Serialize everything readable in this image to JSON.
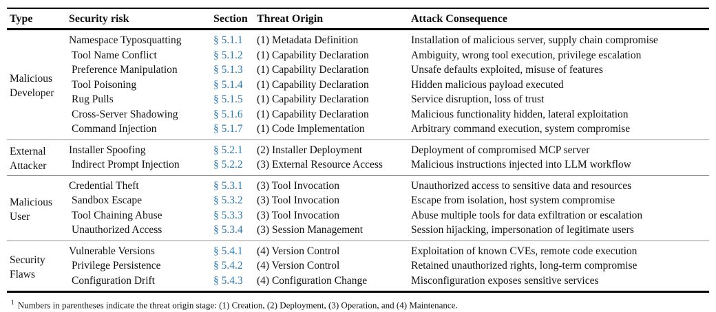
{
  "table": {
    "columns": [
      "Type",
      "Security risk",
      "Section",
      "Threat Origin",
      "Attack Consequence"
    ],
    "groups": [
      {
        "type": "Malicious Developer",
        "rows": [
          {
            "risk": "Namespace Typosquatting",
            "section": "§ 5.1.1",
            "origin": "(1) Metadata Definition",
            "consequence": "Installation of malicious server, supply chain compromise"
          },
          {
            "risk": "Tool Name Conflict",
            "section": "§ 5.1.2",
            "origin": "(1) Capability Declaration",
            "consequence": "Ambiguity, wrong tool execution, privilege escalation"
          },
          {
            "risk": "Preference Manipulation",
            "section": "§ 5.1.3",
            "origin": "(1) Capability Declaration",
            "consequence": "Unsafe defaults exploited, misuse of features"
          },
          {
            "risk": "Tool Poisoning",
            "section": "§ 5.1.4",
            "origin": "(1) Capability Declaration",
            "consequence": "Hidden malicious payload executed"
          },
          {
            "risk": "Rug Pulls",
            "section": "§ 5.1.5",
            "origin": "(1) Capability Declaration",
            "consequence": "Service disruption, loss of trust"
          },
          {
            "risk": "Cross-Server Shadowing",
            "section": "§ 5.1.6",
            "origin": "(1) Capability Declaration",
            "consequence": "Malicious functionality hidden, lateral exploitation"
          },
          {
            "risk": "Command Injection",
            "section": "§ 5.1.7",
            "origin": "(1) Code Implementation",
            "consequence": "Arbitrary command execution, system compromise"
          }
        ]
      },
      {
        "type": "External Attacker",
        "rows": [
          {
            "risk": "Installer Spoofing",
            "section": "§ 5.2.1",
            "origin": "(2) Installer Deployment",
            "consequence": "Deployment of compromised MCP server"
          },
          {
            "risk": "Indirect Prompt Injection",
            "section": "§ 5.2.2",
            "origin": "(3) External Resource Access",
            "consequence": "Malicious instructions injected into LLM workflow"
          }
        ]
      },
      {
        "type": "Malicious User",
        "rows": [
          {
            "risk": "Credential Theft",
            "section": "§ 5.3.1",
            "origin": "(3) Tool Invocation",
            "consequence": "Unauthorized access to sensitive data and resources"
          },
          {
            "risk": "Sandbox Escape",
            "section": "§ 5.3.2",
            "origin": "(3) Tool Invocation",
            "consequence": "Escape from isolation, host system compromise"
          },
          {
            "risk": "Tool Chaining Abuse",
            "section": "§ 5.3.3",
            "origin": "(3) Tool Invocation",
            "consequence": "Abuse multiple tools for data exfiltration or escalation"
          },
          {
            "risk": "Unauthorized Access",
            "section": "§ 5.3.4",
            "origin": "(3) Session Management",
            "consequence": "Session hijacking, impersonation of legitimate users"
          }
        ]
      },
      {
        "type": "Security Flaws",
        "rows": [
          {
            "risk": "Vulnerable Versions",
            "section": "§ 5.4.1",
            "origin": "(4) Version Control",
            "consequence": "Exploitation of known CVEs, remote code execution"
          },
          {
            "risk": "Privilege Persistence",
            "section": "§ 5.4.2",
            "origin": "(4) Version Control",
            "consequence": "Retained unauthorized rights, long-term compromise"
          },
          {
            "risk": "Configuration Drift",
            "section": "§ 5.4.3",
            "origin": "(4) Configuration Change",
            "consequence": "Misconfiguration exposes sensitive services"
          }
        ]
      }
    ],
    "footnote": {
      "marker": "1",
      "text": "Numbers in parentheses indicate the threat origin stage: (1) Creation, (2) Deployment, (3) Operation, and (4) Maintenance."
    }
  },
  "colors": {
    "text": "#111111",
    "link": "#2b7bb4",
    "rule_heavy": "#000000",
    "rule_light": "#8f8f8f"
  }
}
